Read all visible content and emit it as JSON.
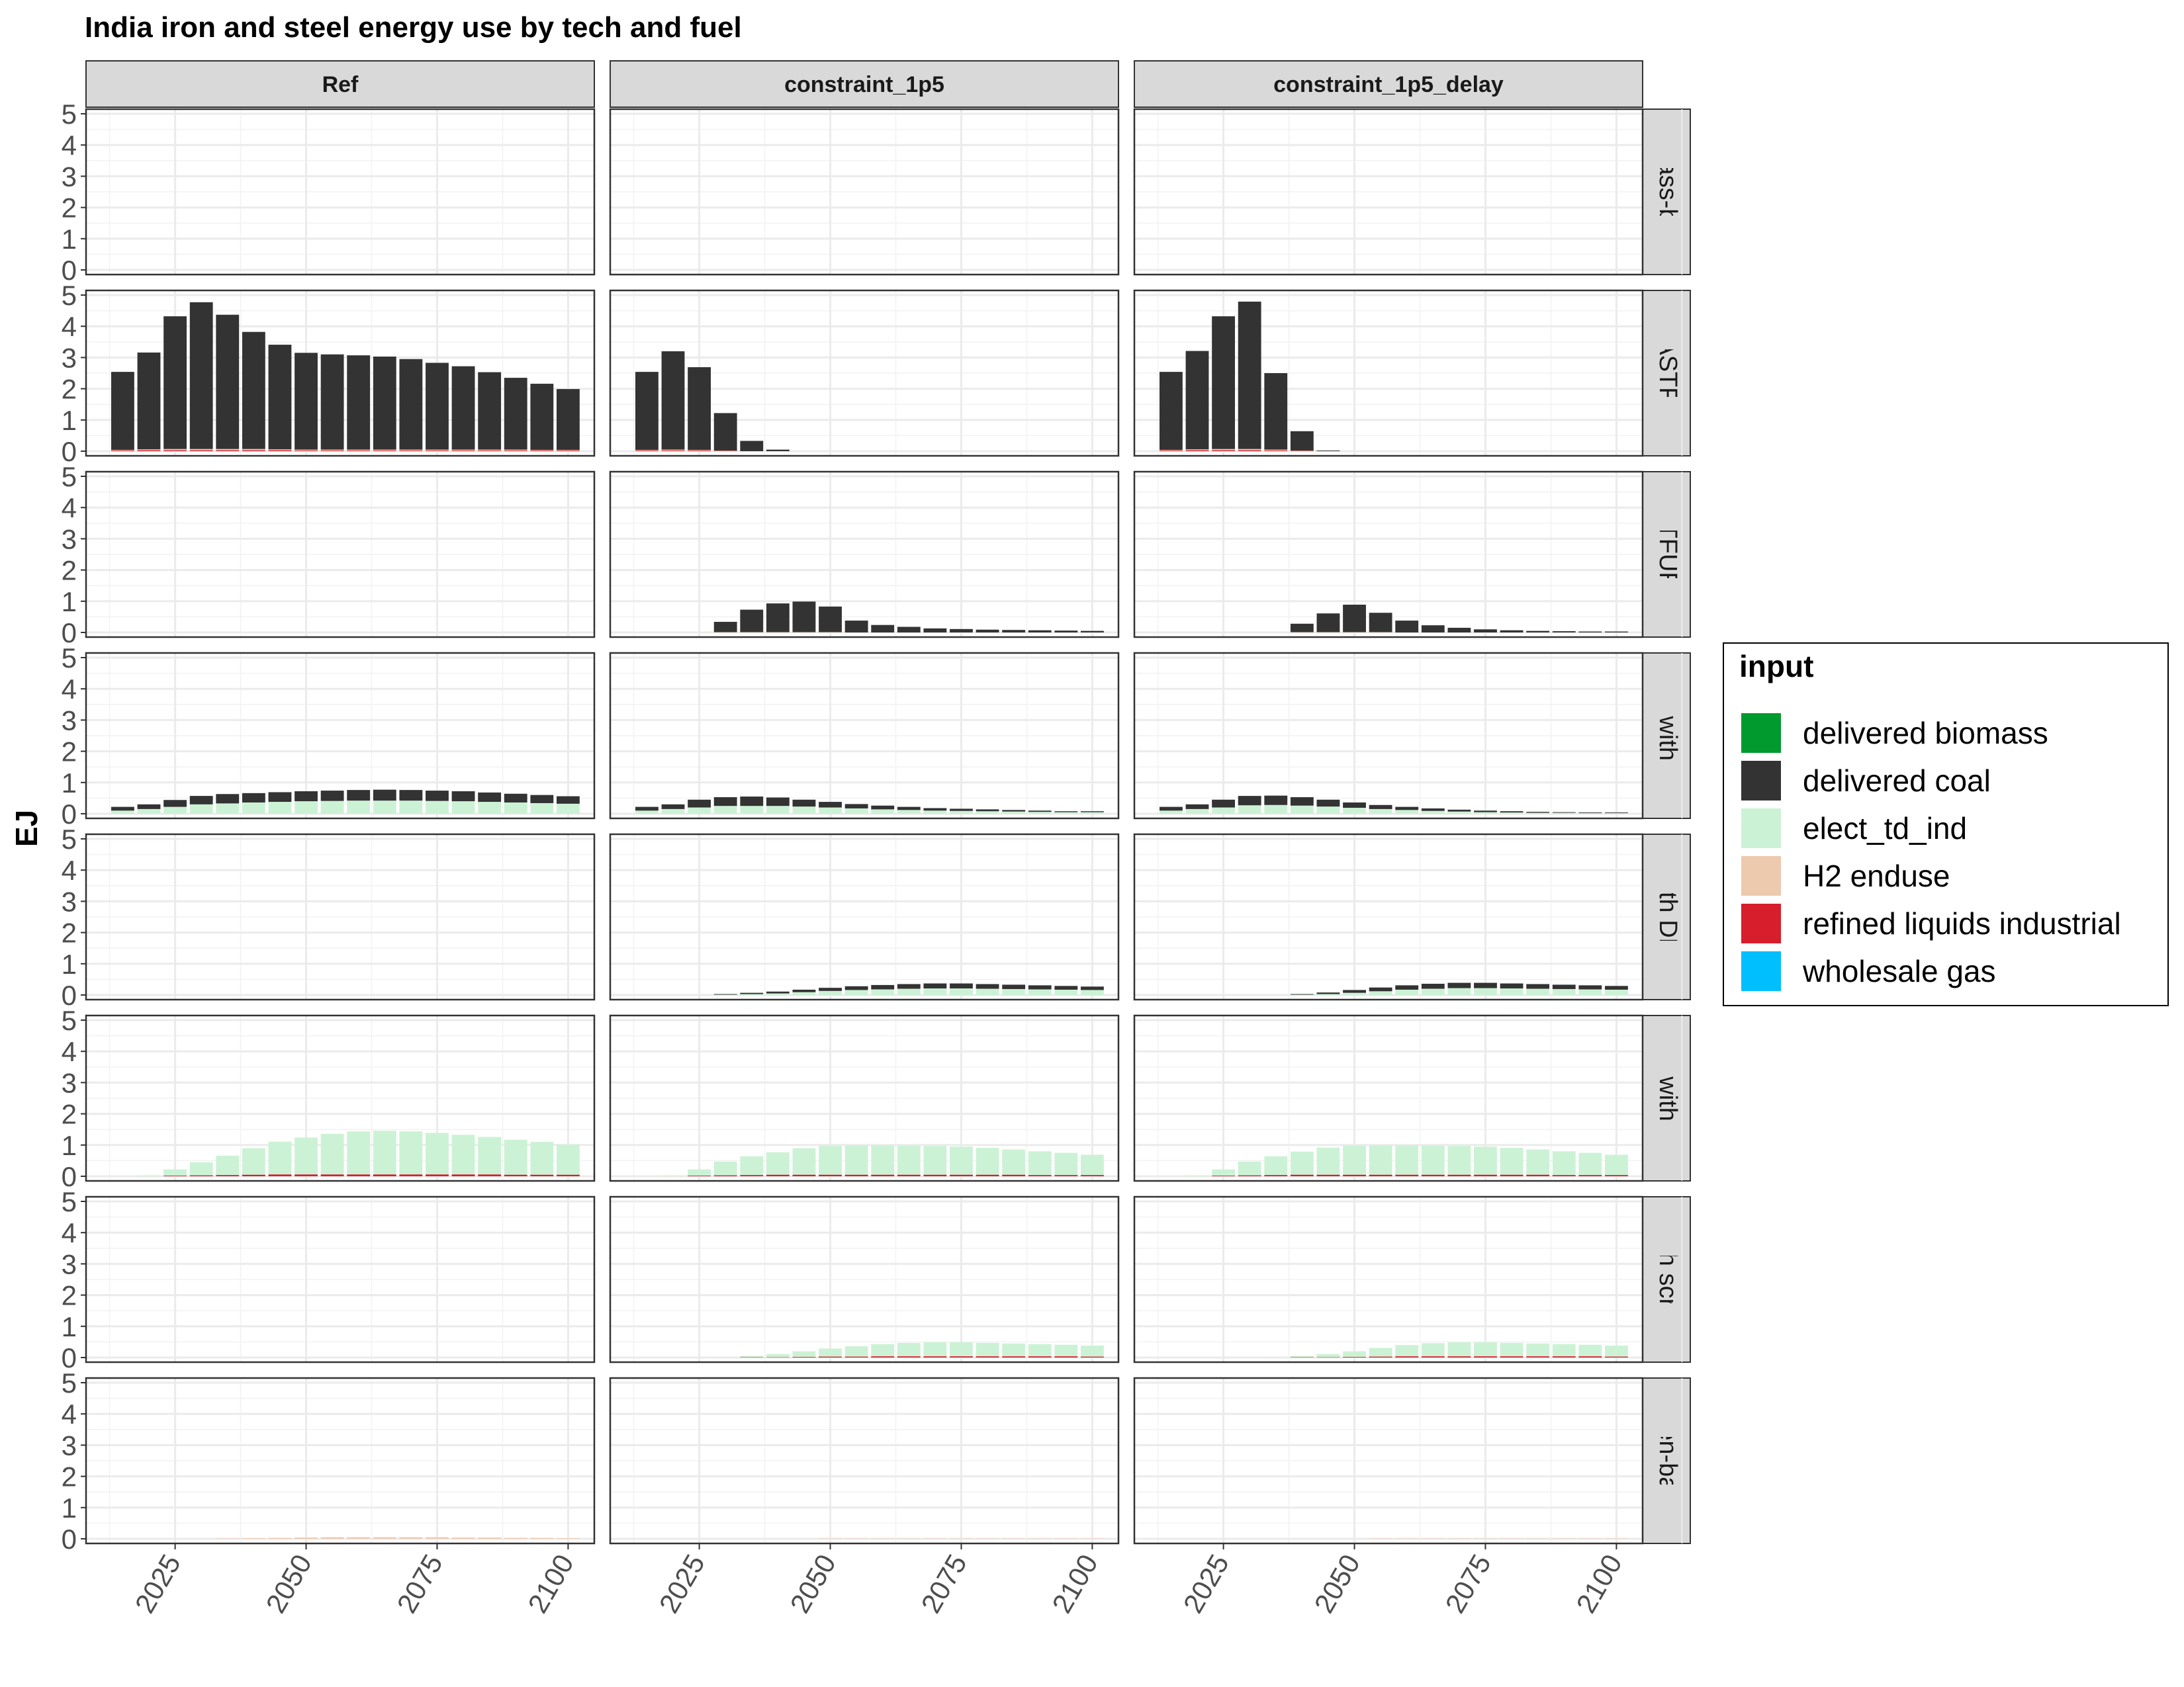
{
  "chart_data": {
    "type": "bar",
    "stacked": true,
    "title": "India iron and steel energy use by tech and fuel",
    "xlabel": "",
    "ylabel": "EJ",
    "ylim": [
      0,
      5
    ],
    "yticks": [
      0,
      1,
      2,
      3,
      4,
      5
    ],
    "xlim": [
      2008,
      2105
    ],
    "xticks": [
      2025,
      2050,
      2075,
      2100
    ],
    "x": [
      2015,
      2020,
      2025,
      2030,
      2035,
      2040,
      2045,
      2050,
      2055,
      2060,
      2065,
      2070,
      2075,
      2080,
      2085,
      2090,
      2095,
      2100
    ],
    "grid": true,
    "legend": {
      "title": "input",
      "position": "right",
      "items": [
        {
          "name": "delivered biomass",
          "color": "#009a2e"
        },
        {
          "name": "delivered coal",
          "color": "#333333"
        },
        {
          "name": "elect_td_ind",
          "color": "#ccf2d5"
        },
        {
          "name": "H2 enduse",
          "color": "#edc9ae"
        },
        {
          "name": "refined liquids industrial",
          "color": "#d71e2c"
        },
        {
          "name": "wholesale gas",
          "color": "#00bfff"
        }
      ]
    },
    "facet_columns": [
      "Ref",
      "constraint_1p5",
      "constraint_1p5_delay"
    ],
    "facet_rows": [
      {
        "label": "biomass-based",
        "shown": "iomass-base"
      },
      {
        "label": "BLASTFUR",
        "shown": "BLASTFUR"
      },
      {
        "label": "BLASTFUR CCS",
        "shown": "LASTFUR CC"
      },
      {
        "label": "EAF with DRI",
        "shown": "EAF with DRI"
      },
      {
        "label": "EAF with DRI CCS",
        "shown": "F with DRI C"
      },
      {
        "label": "EAF with scrap",
        "shown": "EAF with scra"
      },
      {
        "label": "EAF with scrap CCS",
        "shown": "F with scrap C"
      },
      {
        "label": "hydrogen-based",
        "shown": "rogen-based"
      }
    ],
    "panels": [
      [
        {},
        {
          "delivered coal": [
            2.5,
            3.1,
            4.25,
            4.7,
            4.3,
            3.75,
            3.35,
            3.1,
            3.05,
            3.02,
            2.98,
            2.9,
            2.78,
            2.67,
            2.48,
            2.3,
            2.12,
            1.95
          ],
          "H2 enduse": [
            0.02,
            0.03,
            0.04,
            0.04,
            0.04,
            0.04,
            0.03,
            0.03,
            0.03,
            0.03,
            0.03,
            0.03,
            0.03,
            0.03,
            0.03,
            0.03,
            0.02,
            0.02
          ],
          "refined liquids industrial": [
            0.02,
            0.03,
            0.03,
            0.03,
            0.03,
            0.03,
            0.03,
            0.02,
            0.02,
            0.02,
            0.02,
            0.02,
            0.02,
            0.02,
            0.02,
            0.02,
            0.02,
            0.02
          ]
        },
        {},
        {
          "elect_td_ind": [
            0.1,
            0.15,
            0.22,
            0.3,
            0.33,
            0.36,
            0.38,
            0.4,
            0.41,
            0.42,
            0.42,
            0.42,
            0.41,
            0.4,
            0.38,
            0.36,
            0.34,
            0.32
          ],
          "delivered coal": [
            0.12,
            0.15,
            0.22,
            0.27,
            0.3,
            0.3,
            0.31,
            0.32,
            0.33,
            0.34,
            0.35,
            0.34,
            0.33,
            0.32,
            0.3,
            0.28,
            0.26,
            0.24
          ]
        },
        {},
        {
          "elect_td_ind": [
            0,
            0.02,
            0.2,
            0.42,
            0.62,
            0.85,
            1.05,
            1.18,
            1.3,
            1.38,
            1.4,
            1.38,
            1.33,
            1.27,
            1.2,
            1.12,
            1.05,
            0.97
          ],
          "refined liquids industrial": [
            0,
            0,
            0.02,
            0.03,
            0.04,
            0.05,
            0.06,
            0.06,
            0.06,
            0.06,
            0.06,
            0.06,
            0.06,
            0.06,
            0.06,
            0.05,
            0.05,
            0.05
          ]
        },
        {},
        {
          "H2 enduse": [
            0,
            0,
            0,
            0,
            0.01,
            0.02,
            0.03,
            0.04,
            0.05,
            0.05,
            0.05,
            0.05,
            0.05,
            0.04,
            0.04,
            0.03,
            0.03,
            0.02
          ]
        }
      ],
      [
        {},
        {
          "delivered coal": [
            2.5,
            3.15,
            2.65,
            1.2,
            0.33,
            0.05,
            0,
            0,
            0,
            0,
            0,
            0,
            0,
            0,
            0,
            0,
            0,
            0
          ],
          "H2 enduse": [
            0.02,
            0.03,
            0.02,
            0.01,
            0,
            0,
            0,
            0,
            0,
            0,
            0,
            0,
            0,
            0,
            0,
            0,
            0,
            0
          ],
          "refined liquids industrial": [
            0.02,
            0.02,
            0.02,
            0.01,
            0,
            0,
            0,
            0,
            0,
            0,
            0,
            0,
            0,
            0,
            0,
            0,
            0,
            0
          ]
        },
        {
          "delivered coal": [
            0,
            0,
            0,
            0.33,
            0.72,
            0.92,
            0.98,
            0.82,
            0.38,
            0.24,
            0.18,
            0.13,
            0.11,
            0.09,
            0.08,
            0.07,
            0.06,
            0.05
          ],
          "H2 enduse": [
            0,
            0,
            0,
            0.01,
            0.01,
            0.01,
            0.01,
            0.01,
            0,
            0,
            0,
            0,
            0,
            0,
            0,
            0,
            0,
            0
          ]
        },
        {
          "elect_td_ind": [
            0.1,
            0.15,
            0.2,
            0.25,
            0.25,
            0.25,
            0.23,
            0.2,
            0.17,
            0.14,
            0.12,
            0.1,
            0.09,
            0.08,
            0.07,
            0.06,
            0.05,
            0.05
          ],
          "delivered coal": [
            0.12,
            0.15,
            0.25,
            0.28,
            0.3,
            0.27,
            0.22,
            0.18,
            0.14,
            0.12,
            0.1,
            0.08,
            0.07,
            0.06,
            0.05,
            0.04,
            0.03,
            0.03
          ]
        },
        {
          "elect_td_ind": [
            0,
            0,
            0,
            0.01,
            0.03,
            0.05,
            0.09,
            0.13,
            0.16,
            0.18,
            0.2,
            0.21,
            0.21,
            0.2,
            0.19,
            0.18,
            0.17,
            0.16
          ],
          "delivered coal": [
            0,
            0,
            0,
            0.02,
            0.04,
            0.06,
            0.08,
            0.1,
            0.12,
            0.14,
            0.15,
            0.16,
            0.16,
            0.15,
            0.14,
            0.13,
            0.12,
            0.11
          ]
        },
        {
          "elect_td_ind": [
            0,
            0.02,
            0.2,
            0.44,
            0.6,
            0.72,
            0.85,
            0.92,
            0.94,
            0.94,
            0.93,
            0.92,
            0.9,
            0.86,
            0.81,
            0.76,
            0.71,
            0.65
          ],
          "refined liquids industrial": [
            0,
            0,
            0.02,
            0.03,
            0.04,
            0.05,
            0.05,
            0.05,
            0.05,
            0.05,
            0.05,
            0.05,
            0.05,
            0.05,
            0.05,
            0.04,
            0.04,
            0.04
          ]
        },
        {
          "elect_td_ind": [
            0,
            0,
            0,
            0.01,
            0.04,
            0.1,
            0.18,
            0.26,
            0.33,
            0.39,
            0.43,
            0.45,
            0.45,
            0.43,
            0.41,
            0.39,
            0.37,
            0.35
          ],
          "refined liquids industrial": [
            0,
            0,
            0,
            0,
            0.01,
            0.01,
            0.02,
            0.03,
            0.03,
            0.04,
            0.04,
            0.04,
            0.04,
            0.04,
            0.04,
            0.04,
            0.04,
            0.03
          ]
        },
        {
          "H2 enduse": [
            0,
            0,
            0,
            0,
            0,
            0,
            0,
            0.01,
            0.01,
            0.01,
            0.01,
            0.01,
            0.01,
            0.01,
            0.01,
            0.01,
            0.01,
            0.01
          ]
        }
      ],
      [
        {},
        {
          "delivered coal": [
            2.5,
            3.15,
            4.25,
            4.72,
            2.45,
            0.62,
            0.02,
            0,
            0,
            0,
            0,
            0,
            0,
            0,
            0,
            0,
            0,
            0
          ],
          "H2 enduse": [
            0.02,
            0.03,
            0.04,
            0.04,
            0.03,
            0.01,
            0,
            0,
            0,
            0,
            0,
            0,
            0,
            0,
            0,
            0,
            0,
            0
          ],
          "refined liquids industrial": [
            0.02,
            0.03,
            0.03,
            0.03,
            0.02,
            0.01,
            0,
            0,
            0,
            0,
            0,
            0,
            0,
            0,
            0,
            0,
            0,
            0
          ]
        },
        {
          "delivered coal": [
            0,
            0,
            0,
            0,
            0,
            0.27,
            0.6,
            0.88,
            0.62,
            0.38,
            0.23,
            0.15,
            0.1,
            0.07,
            0.05,
            0.04,
            0.03,
            0.03
          ],
          "H2 enduse": [
            0,
            0,
            0,
            0,
            0,
            0.01,
            0.01,
            0.01,
            0.01,
            0,
            0,
            0,
            0,
            0,
            0,
            0,
            0,
            0
          ]
        },
        {
          "elect_td_ind": [
            0.1,
            0.15,
            0.2,
            0.27,
            0.28,
            0.26,
            0.23,
            0.19,
            0.15,
            0.12,
            0.09,
            0.07,
            0.05,
            0.04,
            0.03,
            0.03,
            0.02,
            0.02
          ],
          "delivered coal": [
            0.12,
            0.15,
            0.25,
            0.3,
            0.3,
            0.27,
            0.22,
            0.17,
            0.13,
            0.1,
            0.08,
            0.06,
            0.05,
            0.04,
            0.03,
            0.02,
            0.02,
            0.02
          ]
        },
        {
          "elect_td_ind": [
            0,
            0,
            0,
            0,
            0,
            0.01,
            0.03,
            0.07,
            0.12,
            0.17,
            0.2,
            0.22,
            0.22,
            0.21,
            0.2,
            0.19,
            0.18,
            0.17
          ],
          "delivered coal": [
            0,
            0,
            0,
            0,
            0,
            0.02,
            0.05,
            0.09,
            0.12,
            0.14,
            0.16,
            0.17,
            0.17,
            0.16,
            0.15,
            0.14,
            0.13,
            0.12
          ]
        },
        {
          "elect_td_ind": [
            0,
            0.02,
            0.2,
            0.44,
            0.6,
            0.74,
            0.87,
            0.93,
            0.94,
            0.94,
            0.93,
            0.92,
            0.9,
            0.86,
            0.81,
            0.76,
            0.71,
            0.65
          ],
          "refined liquids industrial": [
            0,
            0,
            0.02,
            0.03,
            0.04,
            0.05,
            0.05,
            0.05,
            0.05,
            0.05,
            0.05,
            0.05,
            0.05,
            0.05,
            0.05,
            0.04,
            0.04,
            0.04
          ]
        },
        {
          "elect_td_ind": [
            0,
            0,
            0,
            0,
            0.01,
            0.04,
            0.1,
            0.18,
            0.28,
            0.36,
            0.42,
            0.45,
            0.45,
            0.43,
            0.41,
            0.39,
            0.37,
            0.35
          ],
          "refined liquids industrial": [
            0,
            0,
            0,
            0,
            0,
            0.01,
            0.01,
            0.02,
            0.03,
            0.04,
            0.04,
            0.04,
            0.04,
            0.04,
            0.04,
            0.04,
            0.04,
            0.03
          ]
        },
        {
          "H2 enduse": [
            0,
            0,
            0,
            0,
            0,
            0,
            0,
            0,
            0.01,
            0.01,
            0.01,
            0.01,
            0.01,
            0.01,
            0.01,
            0.01,
            0.01,
            0.01
          ]
        }
      ]
    ]
  }
}
